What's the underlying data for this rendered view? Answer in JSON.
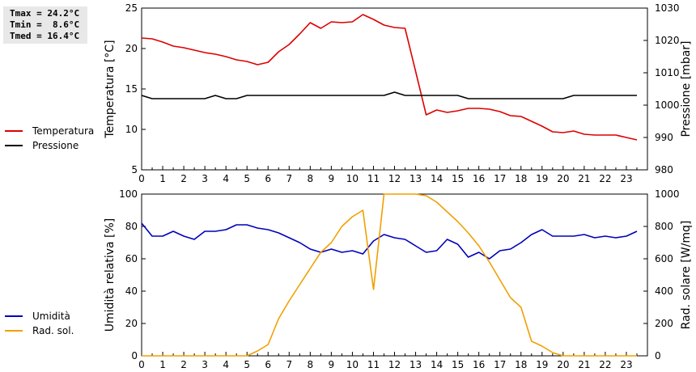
{
  "stats": {
    "tmax": "Tmax = 24.2°C",
    "tmin": "Tmin =  8.6°C",
    "tmed": "Tmed = 16.4°C"
  },
  "legend_top": [
    {
      "label": "Temperatura",
      "color": "#dd0000"
    },
    {
      "label": "Pressione",
      "color": "#000000"
    }
  ],
  "legend_bottom": [
    {
      "label": "Umidità",
      "color": "#0000bb"
    },
    {
      "label": "Rad. sol.",
      "color": "#f0a000"
    }
  ],
  "chart_data": [
    {
      "type": "line",
      "xlabel": "",
      "xlim": [
        0,
        24
      ],
      "x_ticks": [
        "0",
        "1",
        "2",
        "3",
        "4",
        "5",
        "6",
        "7",
        "8",
        "9",
        "10",
        "11",
        "12",
        "13",
        "14",
        "15",
        "16",
        "17",
        "18",
        "19",
        "20",
        "21",
        "22",
        "23"
      ],
      "left_axis": {
        "label": "Temperatura [°C]",
        "lim": [
          5,
          25
        ],
        "ticks": [
          "5",
          "10",
          "15",
          "20",
          "25"
        ]
      },
      "right_axis": {
        "label": "Pressione [mbar]",
        "lim": [
          980,
          1030
        ],
        "ticks": [
          "980",
          "990",
          "1000",
          "1010",
          "1020",
          "1030"
        ]
      },
      "series": [
        {
          "name": "Temperatura",
          "axis": "left",
          "color": "#dd0000",
          "x": [
            0,
            0.5,
            1,
            1.5,
            2,
            2.5,
            3,
            3.5,
            4,
            4.5,
            5,
            5.5,
            6,
            6.5,
            7,
            7.5,
            8,
            8.5,
            9,
            9.5,
            10,
            10.5,
            11,
            11.5,
            12,
            12.5,
            13,
            13.5,
            14,
            14.5,
            15,
            15.5,
            16,
            16.5,
            17,
            17.5,
            18,
            18.5,
            19,
            19.5,
            20,
            20.5,
            21,
            21.5,
            22,
            22.5,
            23,
            23.5
          ],
          "y": [
            21.3,
            21.2,
            20.8,
            20.3,
            20.1,
            19.8,
            19.5,
            19.3,
            19.0,
            18.6,
            18.4,
            18.0,
            18.3,
            19.6,
            20.5,
            21.8,
            23.2,
            22.5,
            23.3,
            23.2,
            23.3,
            24.2,
            23.6,
            22.9,
            22.6,
            22.5,
            17.2,
            11.8,
            12.4,
            12.1,
            12.3,
            12.6,
            12.6,
            12.5,
            12.2,
            11.7,
            11.6,
            11.0,
            10.4,
            9.7,
            9.6,
            9.8,
            9.4,
            9.3,
            9.3,
            9.3,
            9.0,
            8.7
          ]
        },
        {
          "name": "Pressione",
          "axis": "right",
          "color": "#000000",
          "x": [
            0,
            0.5,
            1,
            1.5,
            2,
            2.5,
            3,
            3.5,
            4,
            4.5,
            5,
            5.5,
            6,
            6.5,
            7,
            7.5,
            8,
            8.5,
            9,
            9.5,
            10,
            10.5,
            11,
            11.5,
            12,
            12.5,
            13,
            13.5,
            14,
            14.5,
            15,
            15.5,
            16,
            16.5,
            17,
            17.5,
            18,
            18.5,
            19,
            19.5,
            20,
            20.5,
            21,
            21.5,
            22,
            22.5,
            23,
            23.5
          ],
          "y": [
            1003,
            1002,
            1002,
            1002,
            1002,
            1002,
            1002,
            1003,
            1002,
            1002,
            1003,
            1003,
            1003,
            1003,
            1003,
            1003,
            1003,
            1003,
            1003,
            1003,
            1003,
            1003,
            1003,
            1003,
            1004,
            1003,
            1003,
            1003,
            1003,
            1003,
            1003,
            1002,
            1002,
            1002,
            1002,
            1002,
            1002,
            1002,
            1002,
            1002,
            1002,
            1003,
            1003,
            1003,
            1003,
            1003,
            1003,
            1003
          ]
        }
      ]
    },
    {
      "type": "line",
      "xlabel": "",
      "xlim": [
        0,
        24
      ],
      "x_ticks": [
        "0",
        "1",
        "2",
        "3",
        "4",
        "5",
        "6",
        "7",
        "8",
        "9",
        "10",
        "11",
        "12",
        "13",
        "14",
        "15",
        "16",
        "17",
        "18",
        "19",
        "20",
        "21",
        "22",
        "23"
      ],
      "left_axis": {
        "label": "Umidità relativa [%]",
        "lim": [
          0,
          100
        ],
        "ticks": [
          "0",
          "20",
          "40",
          "60",
          "80",
          "100"
        ]
      },
      "right_axis": {
        "label": "Rad. solare [W/mq]",
        "lim": [
          0,
          1000
        ],
        "ticks": [
          "0",
          "200",
          "400",
          "600",
          "800",
          "1000"
        ]
      },
      "series": [
        {
          "name": "Umidità",
          "axis": "left",
          "color": "#0000bb",
          "x": [
            0,
            0.5,
            1,
            1.5,
            2,
            2.5,
            3,
            3.5,
            4,
            4.5,
            5,
            5.5,
            6,
            6.5,
            7,
            7.5,
            8,
            8.5,
            9,
            9.5,
            10,
            10.5,
            11,
            11.5,
            12,
            12.5,
            13,
            13.5,
            14,
            14.5,
            15,
            15.5,
            16,
            16.5,
            17,
            17.5,
            18,
            18.5,
            19,
            19.5,
            20,
            20.5,
            21,
            21.5,
            22,
            22.5,
            23,
            23.5
          ],
          "y": [
            82,
            74,
            74,
            77,
            74,
            72,
            77,
            77,
            78,
            81,
            81,
            79,
            78,
            76,
            73,
            70,
            66,
            64,
            66,
            64,
            65,
            63,
            71,
            75,
            73,
            72,
            68,
            64,
            65,
            72,
            69,
            61,
            64,
            60,
            65,
            66,
            70,
            75,
            78,
            74,
            74,
            74,
            75,
            73,
            74,
            73,
            74,
            77
          ]
        },
        {
          "name": "Rad. sol.",
          "axis": "right",
          "color": "#f0a000",
          "x": [
            0,
            0.5,
            1,
            1.5,
            2,
            2.5,
            3,
            3.5,
            4,
            4.5,
            5,
            5.5,
            6,
            6.5,
            7,
            7.5,
            8,
            8.5,
            9,
            9.5,
            10,
            10.5,
            11,
            11.5,
            12,
            12.5,
            13,
            13.5,
            14,
            14.5,
            15,
            15.5,
            16,
            16.5,
            17,
            17.5,
            18,
            18.5,
            19,
            19.5,
            20,
            20.5,
            21,
            21.5,
            22,
            22.5,
            23,
            23.5
          ],
          "y": [
            0,
            0,
            0,
            0,
            0,
            0,
            0,
            0,
            0,
            0,
            0,
            30,
            70,
            230,
            340,
            440,
            540,
            640,
            700,
            800,
            860,
            900,
            410,
            1000,
            1000,
            1000,
            1000,
            990,
            950,
            890,
            830,
            760,
            680,
            580,
            470,
            360,
            300,
            90,
            60,
            20,
            0,
            0,
            0,
            0,
            0,
            0,
            0,
            0
          ]
        }
      ]
    }
  ]
}
